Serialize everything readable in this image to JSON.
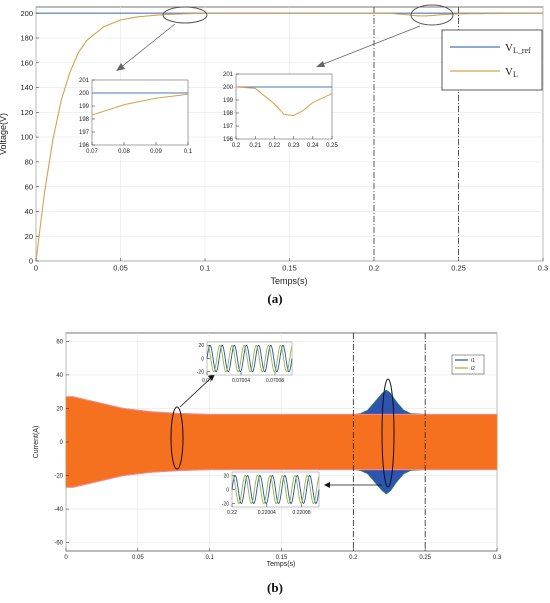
{
  "chart_data": [
    {
      "type": "line",
      "panel_label": "(a)",
      "xlabel": "Temps(s)",
      "ylabel": "Voltage(V)",
      "xlim": [
        0,
        0.3
      ],
      "ylim": [
        0,
        205
      ],
      "xticks": [
        "0",
        "0.05",
        "0.1",
        "0.15",
        "0.2",
        "0.25",
        "0.3"
      ],
      "yticks": [
        "0",
        "20",
        "40",
        "60",
        "80",
        "100",
        "120",
        "140",
        "160",
        "180",
        "200"
      ],
      "vlines": [
        0.2,
        0.25
      ],
      "legend_position": "top-right",
      "series": [
        {
          "name": "VL_ref",
          "color": "#4a78b8",
          "x": [
            0,
            0.3
          ],
          "y": [
            200,
            200
          ]
        },
        {
          "name": "VL",
          "color": "#d6a24a",
          "x": [
            0,
            0.005,
            0.01,
            0.015,
            0.02,
            0.025,
            0.03,
            0.04,
            0.05,
            0.06,
            0.07,
            0.08,
            0.09,
            0.1,
            0.2,
            0.21,
            0.22,
            0.225,
            0.23,
            0.235,
            0.24,
            0.25,
            0.3
          ],
          "y": [
            0,
            55,
            98,
            130,
            152,
            168,
            178,
            189,
            194.5,
            197,
            198.3,
            199.1,
            199.6,
            199.9,
            200,
            199.9,
            198.7,
            197.9,
            197.8,
            198.2,
            198.8,
            199.5,
            200
          ]
        }
      ],
      "insets": [
        {
          "xlim": [
            0.07,
            0.1
          ],
          "ylim": [
            196,
            201
          ],
          "xticks": [
            "0.07",
            "0.08",
            "0.09",
            "0.1"
          ],
          "yticks": [
            "196",
            "197",
            "198",
            "199",
            "200",
            "201"
          ]
        },
        {
          "xlim": [
            0.2,
            0.25
          ],
          "ylim": [
            196,
            201
          ],
          "xticks": [
            "0.2",
            "0.21",
            "0.22",
            "0.23",
            "0.24",
            "0.25"
          ],
          "yticks": [
            "196",
            "197",
            "198",
            "199",
            "200",
            "201"
          ]
        }
      ]
    },
    {
      "type": "line",
      "panel_label": "(b)",
      "xlabel": "Temps(s)",
      "ylabel": "Current(A)",
      "xlim": [
        0,
        0.3
      ],
      "ylim": [
        -65,
        65
      ],
      "xticks": [
        "0",
        "0.05",
        "0.1",
        "0.15",
        "0.2",
        "0.25",
        "0.3"
      ],
      "yticks": [
        "-60",
        "-40",
        "-20",
        "0",
        "20",
        "40",
        "60"
      ],
      "vlines": [
        0.2,
        0.25
      ],
      "legend_position": "top-right",
      "series": [
        {
          "name": "i1",
          "color": "#2b4ea8"
        },
        {
          "name": "i2",
          "color": "#8fb83a"
        }
      ],
      "envelope": {
        "x": [
          0,
          0.005,
          0.02,
          0.04,
          0.06,
          0.08,
          0.1,
          0.2,
          0.205,
          0.21,
          0.215,
          0.22,
          0.223,
          0.226,
          0.23,
          0.235,
          0.24,
          0.25,
          0.3
        ],
        "amplitude": [
          27,
          27,
          24,
          20,
          18,
          17,
          16.5,
          16.5,
          17,
          19,
          24,
          29,
          31,
          29,
          24,
          19,
          17,
          16.5,
          16.5
        ]
      },
      "insets": [
        {
          "xlim": [
            0.07,
            0.0701
          ],
          "ylim": [
            -25,
            25
          ],
          "xticks": [
            "0.07",
            "0.07004",
            "0.07008"
          ],
          "yticks": [
            "-20",
            "0",
            "20"
          ]
        },
        {
          "xlim": [
            0.22,
            0.2201
          ],
          "ylim": [
            -25,
            25
          ],
          "xticks": [
            "0.22",
            "0.22004",
            "0.22008"
          ],
          "yticks": [
            "-20",
            "0",
            "20"
          ]
        }
      ]
    }
  ]
}
